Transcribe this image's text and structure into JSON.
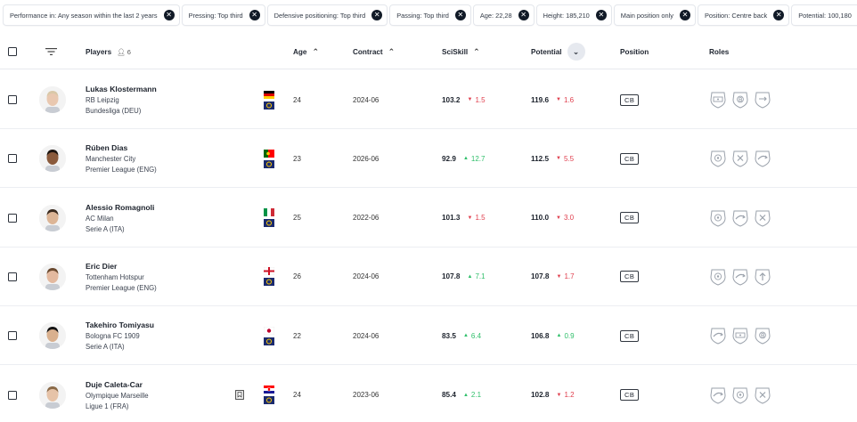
{
  "filters": [
    {
      "label": "Performance in: Any season within the last 2 years"
    },
    {
      "label": "Pressing: Top third"
    },
    {
      "label": "Defensive positioning: Top third"
    },
    {
      "label": "Passing: Top third"
    },
    {
      "label": "Age: 22,28"
    },
    {
      "label": "Height: 185,210"
    },
    {
      "label": "Main position only"
    },
    {
      "label": "Position: Centre back"
    },
    {
      "label": "Potential: 100,180"
    }
  ],
  "header": {
    "players": "Players",
    "players_count": "6",
    "age": "Age",
    "contract": "Contract",
    "sciskill": "SciSkill",
    "potential": "Potential",
    "position": "Position",
    "roles": "Roles"
  },
  "colors": {
    "down": "#e0404f",
    "up": "#2fbf6a",
    "accent": "#111a27"
  },
  "rows": [
    {
      "name": "Lukas Klostermann",
      "club": "RB Leipzig",
      "league": "Bundesliga (DEU)",
      "flag": "germany-flag",
      "age": "24",
      "contract": "2024-06",
      "sciskill": "103.2",
      "sciskill_delta": "1.5",
      "sciskill_dir": "down",
      "potential": "119.6",
      "potential_delta": "1.6",
      "potential_dir": "down",
      "position": "CB",
      "roles": [
        "wide-role-icon",
        "ball-playing-role-icon",
        "stopper-role-icon"
      ],
      "bookmark": false
    },
    {
      "name": "Rúben Dias",
      "club": "Manchester City",
      "league": "Premier League (ENG)",
      "flag": "portugal-flag",
      "age": "23",
      "contract": "2026-06",
      "sciskill": "92.9",
      "sciskill_delta": "12.7",
      "sciskill_dir": "up",
      "potential": "112.5",
      "potential_delta": "5.5",
      "potential_dir": "down",
      "position": "CB",
      "roles": [
        "ball-role-icon",
        "cross-role-icon",
        "curve-role-icon"
      ],
      "bookmark": false
    },
    {
      "name": "Alessio Romagnoli",
      "club": "AC Milan",
      "league": "Serie A (ITA)",
      "flag": "italy-flag",
      "age": "25",
      "contract": "2022-06",
      "sciskill": "101.3",
      "sciskill_delta": "1.5",
      "sciskill_dir": "down",
      "potential": "110.0",
      "potential_delta": "3.0",
      "potential_dir": "down",
      "position": "CB",
      "roles": [
        "ball-role-icon",
        "curve-role-icon",
        "cross-role-icon"
      ],
      "bookmark": false
    },
    {
      "name": "Eric Dier",
      "club": "Tottenham Hotspur",
      "league": "Premier League (ENG)",
      "flag": "england-flag",
      "age": "26",
      "contract": "2024-06",
      "sciskill": "107.8",
      "sciskill_delta": "7.1",
      "sciskill_dir": "up",
      "potential": "107.8",
      "potential_delta": "1.7",
      "potential_dir": "down",
      "position": "CB",
      "roles": [
        "ball-role-icon",
        "curve-role-icon",
        "up-arrow-role-icon"
      ],
      "bookmark": false
    },
    {
      "name": "Takehiro Tomiyasu",
      "club": "Bologna FC 1909",
      "league": "Serie A (ITA)",
      "flag": "japan-flag",
      "age": "22",
      "contract": "2024-06",
      "sciskill": "83.5",
      "sciskill_delta": "6.4",
      "sciskill_dir": "up",
      "potential": "106.8",
      "potential_delta": "0.9",
      "potential_dir": "up",
      "position": "CB",
      "roles": [
        "curve-role-icon",
        "wide-role-icon",
        "ball-playing-role-icon"
      ],
      "bookmark": false
    },
    {
      "name": "Duje Caleta-Car",
      "club": "Olympique Marseille",
      "league": "Ligue 1 (FRA)",
      "flag": "croatia-flag",
      "age": "24",
      "contract": "2023-06",
      "sciskill": "85.4",
      "sciskill_delta": "2.1",
      "sciskill_dir": "up",
      "potential": "102.8",
      "potential_delta": "1.2",
      "potential_dir": "down",
      "position": "CB",
      "roles": [
        "curve-role-icon",
        "ball-role-icon",
        "cross-role-icon"
      ],
      "bookmark": true
    }
  ]
}
